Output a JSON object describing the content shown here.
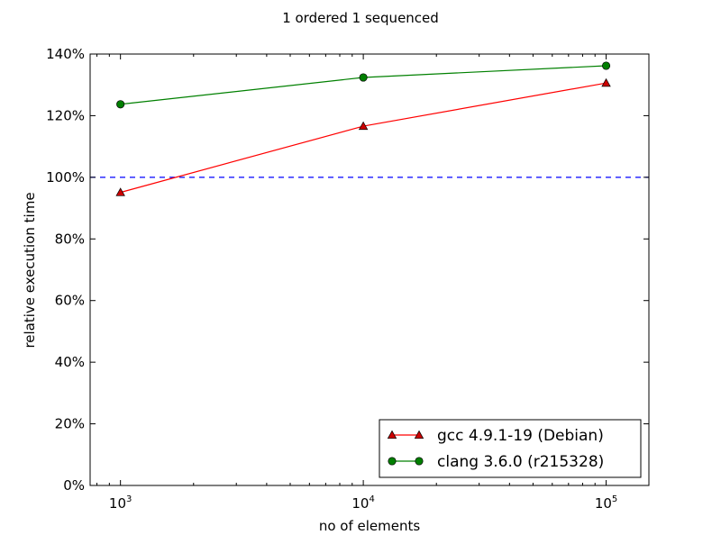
{
  "chart_data": {
    "type": "line",
    "title": "1 ordered 1 sequenced",
    "xlabel": "no of elements",
    "ylabel": "relative execution time",
    "x_scale": "log",
    "xlim": [
      750,
      150000
    ],
    "ylim": [
      0,
      140
    ],
    "x_ticks": [
      {
        "value": 1000,
        "base": "10",
        "exp": "3"
      },
      {
        "value": 10000,
        "base": "10",
        "exp": "4"
      },
      {
        "value": 100000,
        "base": "10",
        "exp": "5"
      }
    ],
    "y_ticks": [
      {
        "value": 0,
        "label": "0%"
      },
      {
        "value": 20,
        "label": "20%"
      },
      {
        "value": 40,
        "label": "40%"
      },
      {
        "value": 60,
        "label": "60%"
      },
      {
        "value": 80,
        "label": "80%"
      },
      {
        "value": 100,
        "label": "100%"
      },
      {
        "value": 120,
        "label": "120%"
      },
      {
        "value": 140,
        "label": "140%"
      }
    ],
    "reference_line": {
      "y": 100,
      "color": "#0000ff",
      "style": "dashed"
    },
    "grid": false,
    "legend_position": "lower-right",
    "series": [
      {
        "name": "gcc 4.9.1-19 (Debian)",
        "color": "#ff0000",
        "marker_fill": "#cc0000",
        "marker": "triangle",
        "x": [
          1000,
          10000,
          100000
        ],
        "y": [
          95.1,
          116.6,
          130.6
        ]
      },
      {
        "name": "clang 3.6.0 (r215328)",
        "color": "#008000",
        "marker_fill": "#007f00",
        "marker": "circle",
        "x": [
          1000,
          10000,
          100000
        ],
        "y": [
          123.7,
          132.4,
          136.2
        ]
      }
    ]
  }
}
